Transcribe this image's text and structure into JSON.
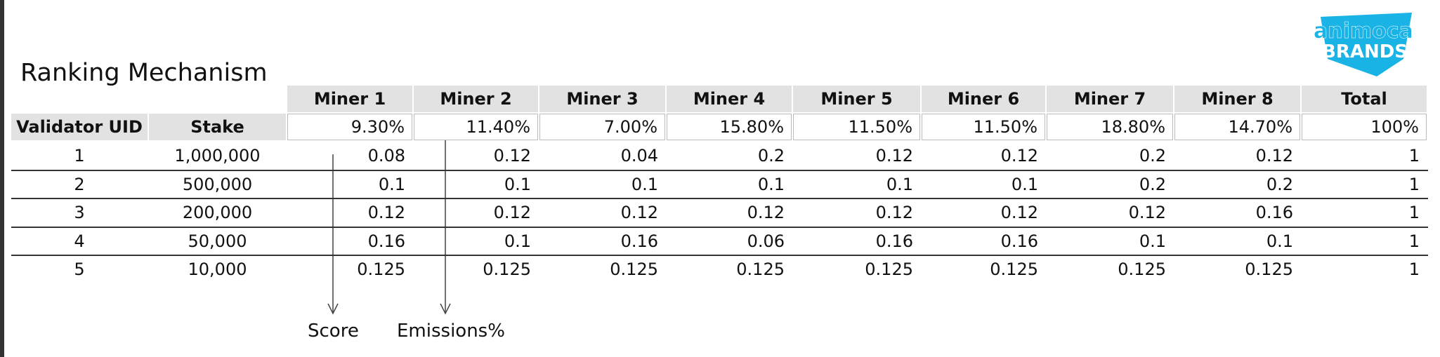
{
  "title": "Ranking Mechanism",
  "logo": {
    "line1": "animoca",
    "line2": "BRANDS"
  },
  "table": {
    "columns": [
      "Miner 1",
      "Miner 2",
      "Miner 3",
      "Miner 4",
      "Miner 5",
      "Miner 6",
      "Miner 7",
      "Miner 8",
      "Total"
    ],
    "subheader": [
      "Validator UID",
      "Stake"
    ],
    "emissions": [
      "9.30%",
      "11.40%",
      "7.00%",
      "15.80%",
      "11.50%",
      "11.50%",
      "18.80%",
      "14.70%",
      "100%"
    ],
    "rows": [
      [
        "1",
        "1,000,000",
        "0.08",
        "0.12",
        "0.04",
        "0.2",
        "0.12",
        "0.12",
        "0.2",
        "0.12",
        "1"
      ],
      [
        "2",
        "500,000",
        "0.1",
        "0.1",
        "0.1",
        "0.1",
        "0.1",
        "0.1",
        "0.2",
        "0.2",
        "1"
      ],
      [
        "3",
        "200,000",
        "0.12",
        "0.12",
        "0.12",
        "0.12",
        "0.12",
        "0.12",
        "0.12",
        "0.16",
        "1"
      ],
      [
        "4",
        "50,000",
        "0.16",
        "0.1",
        "0.16",
        "0.06",
        "0.16",
        "0.16",
        "0.1",
        "0.1",
        "1"
      ],
      [
        "5",
        "10,000",
        "0.125",
        "0.125",
        "0.125",
        "0.125",
        "0.125",
        "0.125",
        "0.125",
        "0.125",
        "1"
      ]
    ]
  },
  "annotations": {
    "score": "Score",
    "emissions": "Emissions%"
  }
}
